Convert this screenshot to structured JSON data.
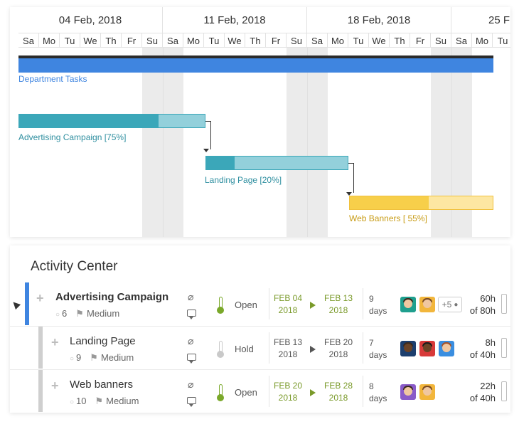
{
  "gantt": {
    "weeks": [
      "04 Feb, 2018",
      "11 Feb, 2018",
      "18 Feb, 2018",
      "25 F"
    ],
    "days": [
      "Sa",
      "Mo",
      "Tu",
      "We",
      "Th",
      "Fr",
      "Su",
      "Sa",
      "Mo",
      "Tu",
      "We",
      "Th",
      "Fr",
      "Su",
      "Sa",
      "Mo",
      "Tu",
      "We",
      "Th",
      "Fr",
      "Su",
      "Sa",
      "Mo",
      "Tu"
    ],
    "department_label": "Department Tasks",
    "bars": [
      {
        "label": "Advertising Campaign [75%]",
        "progress": 75,
        "color": "#3ba7b9",
        "light": "#93d0db"
      },
      {
        "label": "Landing Page [20%]",
        "progress": 20,
        "color": "#3ba7b9",
        "light": "#93d0db"
      },
      {
        "label": "Web Banners [ 55%]",
        "progress": 55,
        "color": "#f7cf4a",
        "light": "#fde7a2"
      }
    ],
    "colors": {
      "department": "#3f85e0",
      "weekend": "#ebebeb"
    }
  },
  "activity": {
    "title": "Activity Center",
    "rows": [
      {
        "name": "Advertising Campaign",
        "count": "6",
        "priority": "Medium",
        "status": "Open",
        "start_mon": "FEB 04",
        "start_year": "2018",
        "end_mon": "FEB 13",
        "end_year": "2018",
        "days_num": "9",
        "days_word": "days",
        "more": "+5",
        "hours": "60h",
        "hours_of": "of 80h",
        "accent": "#3f85e0"
      },
      {
        "name": "Landing Page",
        "count": "9",
        "priority": "Medium",
        "status": "Hold",
        "start_mon": "FEB 13",
        "start_year": "2018",
        "end_mon": "FEB 20",
        "end_year": "2018",
        "days_num": "7",
        "days_word": "days",
        "hours": "8h",
        "hours_of": "of 40h",
        "accent": "#cfcfcf"
      },
      {
        "name": "Web banners",
        "count": "10",
        "priority": "Medium",
        "status": "Open",
        "start_mon": "FEB 20",
        "start_year": "2018",
        "end_mon": "FEB 28",
        "end_year": "2018",
        "days_num": "8",
        "days_word": "days",
        "hours": "22h",
        "hours_of": "of 40h",
        "accent": "#cfcfcf"
      }
    ]
  }
}
